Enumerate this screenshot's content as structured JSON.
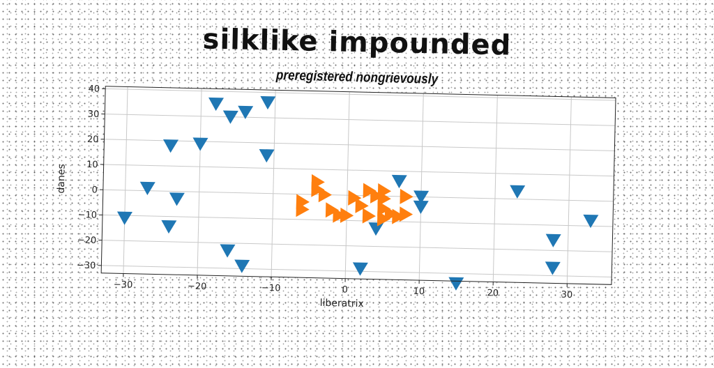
{
  "chart_data": {
    "type": "scatter",
    "title": "silklike impounded",
    "subtitle": "preregistered nongrievously",
    "xlabel": "liberatrix",
    "ylabel": "danes",
    "xlim": [
      -33,
      36
    ],
    "ylim": [
      -33,
      41
    ],
    "xticks": [
      -30,
      -20,
      -10,
      0,
      10,
      20,
      30
    ],
    "yticks": [
      -30,
      -20,
      -10,
      0,
      10,
      20,
      30,
      40
    ],
    "grid": true,
    "series": [
      {
        "color": "#1f77b4",
        "marker": "triangle-down",
        "points": [
          [
            -30,
            -11
          ],
          [
            -27,
            1
          ],
          [
            -24,
            -14
          ],
          [
            -24,
            18
          ],
          [
            -23,
            -3
          ],
          [
            -20,
            19
          ],
          [
            -18,
            35
          ],
          [
            -16,
            30
          ],
          [
            -14,
            32
          ],
          [
            -11,
            36
          ],
          [
            -11,
            15
          ],
          [
            -16,
            -23
          ],
          [
            -14,
            -29
          ],
          [
            2,
            -29
          ],
          [
            4,
            -13
          ],
          [
            7,
            6
          ],
          [
            10,
            0
          ],
          [
            10,
            -4
          ],
          [
            15,
            -34
          ],
          [
            23,
            3
          ],
          [
            28,
            -16
          ],
          [
            28,
            -27
          ],
          [
            33,
            -8
          ]
        ]
      },
      {
        "color": "#ff7f0e",
        "marker": "triangle-right",
        "points": [
          [
            -6,
            -3
          ],
          [
            -6,
            -6
          ],
          [
            -4,
            5
          ],
          [
            -4,
            2
          ],
          [
            -3,
            0
          ],
          [
            -2,
            -6
          ],
          [
            -1,
            -8
          ],
          [
            0,
            -8
          ],
          [
            1,
            -1
          ],
          [
            2,
            -4
          ],
          [
            3,
            2
          ],
          [
            3,
            -8
          ],
          [
            4,
            0
          ],
          [
            5,
            2
          ],
          [
            5,
            -1
          ],
          [
            5,
            -9
          ],
          [
            5,
            -5
          ],
          [
            6,
            -7
          ],
          [
            7,
            -8
          ],
          [
            8,
            0
          ],
          [
            8,
            -7
          ]
        ]
      }
    ]
  }
}
